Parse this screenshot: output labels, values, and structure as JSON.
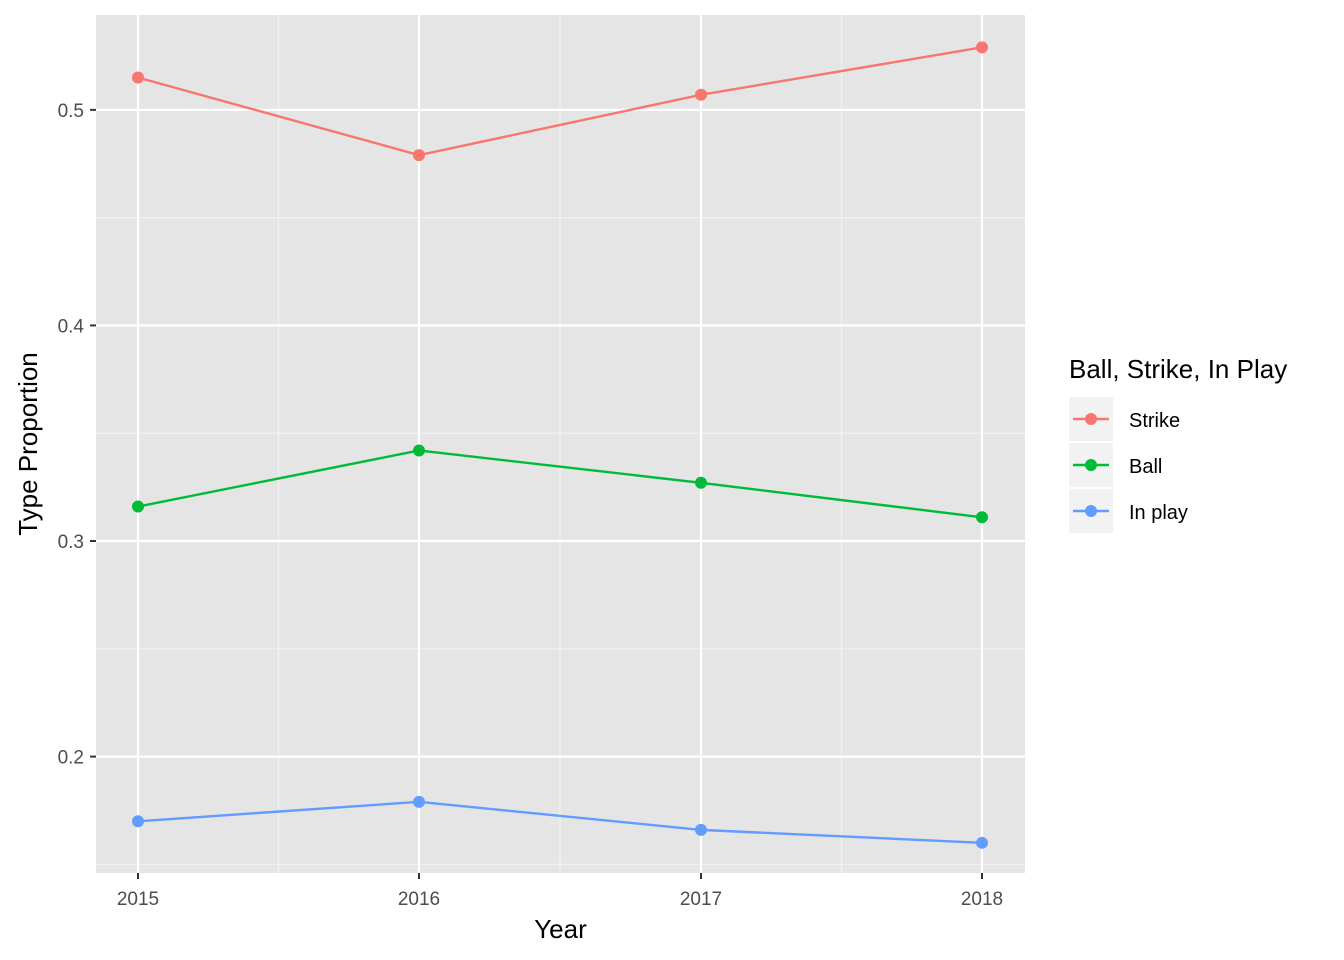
{
  "chart_data": {
    "type": "line",
    "x": [
      "2015",
      "2016",
      "2017",
      "2018"
    ],
    "xlabel": "Year",
    "ylabel": "Type Proportion",
    "ylim": [
      0.146,
      0.544
    ],
    "yticks": [
      "0.2",
      "0.3",
      "0.4",
      "0.5"
    ],
    "grid": true,
    "legend": {
      "title": "Ball, Strike, In Play",
      "position": "right"
    },
    "series": [
      {
        "name": "Strike",
        "color": "#F8766D",
        "values": [
          0.515,
          0.479,
          0.507,
          0.529
        ]
      },
      {
        "name": "Ball",
        "color": "#00BA38",
        "values": [
          0.316,
          0.342,
          0.327,
          0.311
        ]
      },
      {
        "name": "In play",
        "color": "#619CFF",
        "values": [
          0.17,
          0.179,
          0.166,
          0.16
        ]
      }
    ]
  }
}
